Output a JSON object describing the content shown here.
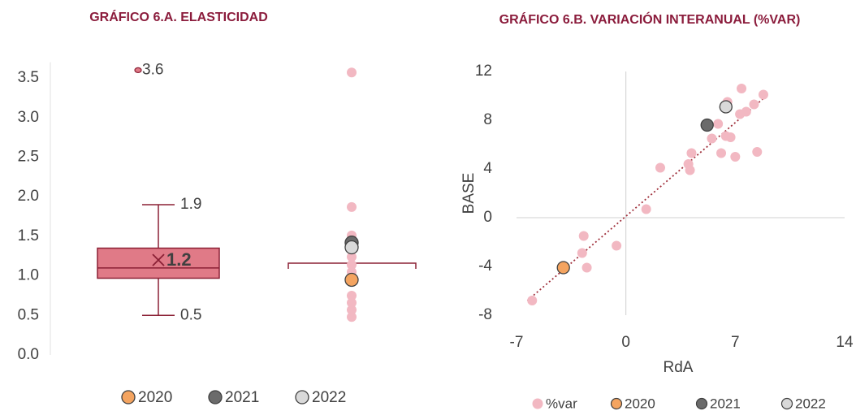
{
  "chart_data": [
    {
      "type": "box",
      "title": "GRÁFICO 6.A.  ELASTICIDAD",
      "ylim": [
        0,
        3.7
      ],
      "yticks": [
        {
          "value": 0,
          "label": "0.0"
        },
        0.5,
        {
          "value": 1,
          "label": "1.0"
        },
        1.5,
        {
          "value": 2,
          "label": "2.0"
        },
        2.5,
        {
          "value": 3,
          "label": "3.0"
        },
        3.5
      ],
      "color": "#e07a87",
      "box": {
        "min": 0.5,
        "q1": 0.97,
        "median": 1.1,
        "q3": 1.35,
        "max": 1.9,
        "mean": 1.2,
        "outliers": [
          3.6
        ]
      },
      "points": {
        "color": "#f2b8c2",
        "values": [
          3.57,
          1.87,
          1.51,
          1.43,
          1.33,
          1.24,
          1.14,
          1.05,
          0.94,
          0.75,
          0.66,
          0.57,
          0.48
        ]
      },
      "reference_line": 1.16,
      "series": [
        {
          "name": "2020",
          "color": "#f4a460",
          "values": [
            0.95
          ]
        },
        {
          "name": "2021",
          "color": "#6b6b6b",
          "values": [
            1.42
          ]
        },
        {
          "name": "2022",
          "color": "#d9d9d9",
          "values": [
            1.36
          ]
        }
      ]
    },
    {
      "type": "scatter",
      "title": "GRÁFICO 6.B.  VARIACIÓN INTERANUAL (%VAR)",
      "x_label": "RdA",
      "y_label": "BASE",
      "xlim": [
        -7,
        14
      ],
      "xticks": [
        -7,
        0,
        7,
        14
      ],
      "ylim": [
        -8,
        12
      ],
      "yticks": [
        -8,
        -4,
        0,
        4,
        8,
        12
      ],
      "series": [
        {
          "name": "%var",
          "color": "#f2b8c2",
          "x": [
            -6.0,
            -2.7,
            -2.8,
            -2.5,
            -0.6,
            1.3,
            2.2,
            4.2,
            4.0,
            4.1,
            5.5,
            5.9,
            6.1,
            6.5,
            6.4,
            6.7,
            7.0,
            7.4,
            7.3,
            7.7,
            8.2,
            8.4,
            8.8
          ],
          "y": [
            -6.8,
            -1.5,
            -2.9,
            -4.1,
            -2.3,
            0.7,
            4.1,
            5.3,
            4.4,
            3.9,
            6.5,
            7.7,
            5.3,
            9.5,
            6.7,
            6.6,
            5.0,
            10.6,
            8.5,
            8.7,
            9.3,
            5.4,
            10.1
          ]
        },
        {
          "name": "2020",
          "color": "#f4a460",
          "x": [
            -4.0
          ],
          "y": [
            -4.1
          ]
        },
        {
          "name": "2021",
          "color": "#6b6b6b",
          "x": [
            5.2
          ],
          "y": [
            7.6
          ]
        },
        {
          "name": "2022",
          "color": "#d9d9d9",
          "x": [
            6.4
          ],
          "y": [
            9.1
          ]
        }
      ],
      "trendline": {
        "color": "#a0303c",
        "x": [
          -6.3,
          9
        ],
        "y": [
          -6.8,
          10
        ]
      }
    }
  ]
}
